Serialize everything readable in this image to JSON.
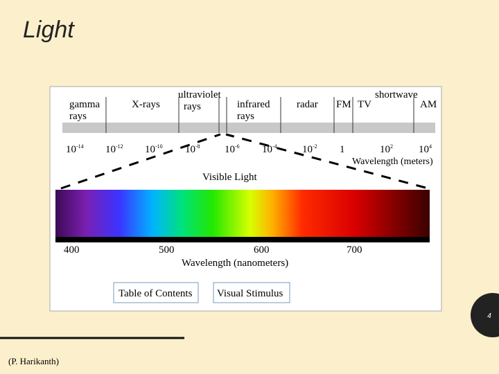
{
  "header": {
    "title": "Light"
  },
  "spectrum": {
    "bands": [
      {
        "label_lines": [
          "gamma",
          "rays"
        ]
      },
      {
        "label_lines": [
          "X-rays"
        ]
      },
      {
        "label_lines": [
          "ultraviolet",
          "rays"
        ]
      },
      {
        "label_lines": [
          "infrared",
          "rays"
        ]
      },
      {
        "label_lines": [
          "radar"
        ]
      },
      {
        "label_lines": [
          "FM"
        ]
      },
      {
        "label_lines": [
          "TV"
        ]
      },
      {
        "label_lines": [
          "shortwave"
        ]
      },
      {
        "label_lines": [
          "AM"
        ]
      }
    ],
    "wavelength_ticks": [
      {
        "base": "10",
        "exp": "-14"
      },
      {
        "base": "10",
        "exp": "-12"
      },
      {
        "base": "10",
        "exp": "-10"
      },
      {
        "base": "10",
        "exp": "-8"
      },
      {
        "base": "10",
        "exp": "-6"
      },
      {
        "base": "10",
        "exp": "-4"
      },
      {
        "base": "10",
        "exp": "-2"
      },
      {
        "base": "1"
      },
      {
        "base": "10",
        "exp": "2"
      },
      {
        "base": "10",
        "exp": "4"
      }
    ],
    "wavelength_axis_label": "Wavelength (meters)",
    "visible_title": "Visible Light",
    "visible_ticks": [
      "400",
      "500",
      "600",
      "700"
    ],
    "visible_axis_label": "Wavelength (nanometers)"
  },
  "buttons": [
    "Table of Contents",
    "Visual Stimulus"
  ],
  "page_number": "4",
  "footer": {
    "credit": "(P. Harikanth)"
  }
}
